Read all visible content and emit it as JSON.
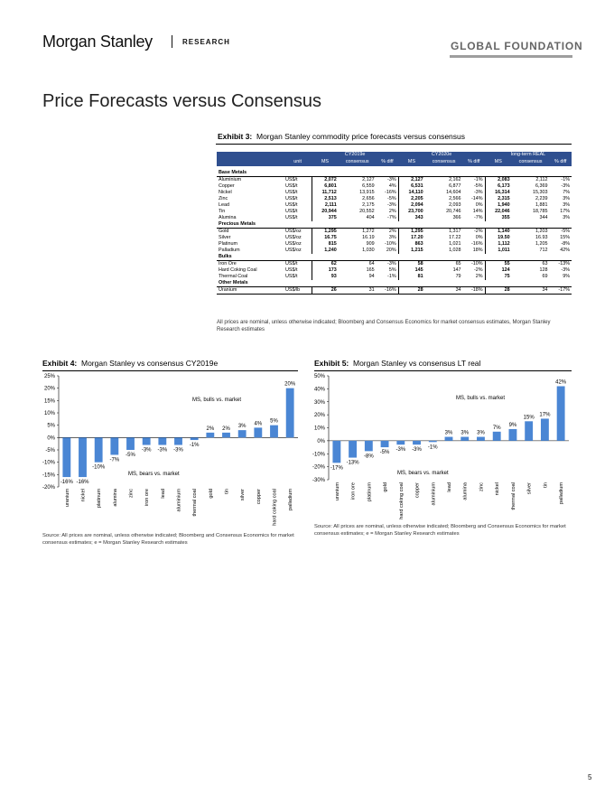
{
  "header": {
    "brand": "Morgan Stanley",
    "section": "RESEARCH",
    "series": "GLOBAL FOUNDATION"
  },
  "page_title": "Price Forecasts versus Consensus",
  "exhibit3": {
    "label": "Exhibit 3:",
    "title": "Morgan Stanley commodity price forecasts versus consensus",
    "groups": [
      "CY2019e",
      "CY2020e",
      "long-term REAL"
    ],
    "columns": [
      "unit",
      "MS",
      "consensus",
      "% diff",
      "MS",
      "consensus",
      "% diff",
      "MS",
      "consensus",
      "% diff"
    ],
    "sections": [
      {
        "name": "Base Metals",
        "rows": [
          [
            "Aluminium",
            "US$/t",
            "2,072",
            "2,127",
            "-3%",
            "2,127",
            "2,162",
            "-1%",
            "2,083",
            "2,112",
            "-1%"
          ],
          [
            "Copper",
            "US$/t",
            "6,801",
            "6,559",
            "4%",
            "6,531",
            "6,877",
            "-5%",
            "6,173",
            "6,369",
            "-3%"
          ],
          [
            "Nickel",
            "US$/t",
            "11,712",
            "13,915",
            "-16%",
            "14,110",
            "14,604",
            "-3%",
            "16,314",
            "15,303",
            "7%"
          ],
          [
            "Zinc",
            "US$/t",
            "2,513",
            "2,656",
            "-5%",
            "2,205",
            "2,566",
            "-14%",
            "2,315",
            "2,239",
            "3%"
          ],
          [
            "Lead",
            "US$/t",
            "2,111",
            "2,175",
            "-3%",
            "2,094",
            "2,093",
            "0%",
            "1,940",
            "1,881",
            "3%"
          ],
          [
            "Tin",
            "US$/t",
            "20,944",
            "20,552",
            "2%",
            "23,700",
            "20,746",
            "14%",
            "22,046",
            "18,785",
            "17%"
          ],
          [
            "Alumina",
            "US$/t",
            "375",
            "404",
            "-7%",
            "343",
            "366",
            "-7%",
            "355",
            "344",
            "3%"
          ]
        ]
      },
      {
        "name": "Precious Metals",
        "rows": [
          [
            "Gold",
            "US$/oz",
            "1,295",
            "1,272",
            "2%",
            "1,295",
            "1,317",
            "-2%",
            "1,140",
            "1,203",
            "-5%"
          ],
          [
            "Silver",
            "US$/oz",
            "16.75",
            "16.19",
            "3%",
            "17.20",
            "17.22",
            "0%",
            "19.50",
            "16.93",
            "15%"
          ],
          [
            "Platinum",
            "US$/oz",
            "815",
            "909",
            "-10%",
            "863",
            "1,021",
            "-16%",
            "1,112",
            "1,205",
            "-8%"
          ],
          [
            "Palladium",
            "US$/oz",
            "1,240",
            "1,030",
            "20%",
            "1,215",
            "1,028",
            "18%",
            "1,011",
            "712",
            "42%"
          ]
        ]
      },
      {
        "name": "Bulks",
        "rows": [
          [
            "Iron Ore",
            "US$/t",
            "62",
            "64",
            "-3%",
            "58",
            "65",
            "-10%",
            "55",
            "63",
            "-13%"
          ],
          [
            "Hard Coking Coal",
            "US$/t",
            "173",
            "165",
            "5%",
            "145",
            "147",
            "-2%",
            "124",
            "128",
            "-3%"
          ],
          [
            "Thermal Coal",
            "US$/t",
            "93",
            "94",
            "-1%",
            "81",
            "79",
            "2%",
            "75",
            "69",
            "9%"
          ]
        ]
      },
      {
        "name": "Other Metals",
        "rows": [
          [
            "Uranium",
            "US$/lb",
            "26",
            "31",
            "-16%",
            "28",
            "34",
            "-18%",
            "28",
            "34",
            "-17%"
          ]
        ]
      }
    ],
    "note": "All prices are nominal, unless otherwise indicated; Bloomberg and Consensus Economics for market consensus estimates, Morgan Stanley Research estimates"
  },
  "exhibit4": {
    "label": "Exhibit 4:",
    "title": "Morgan Stanley vs consensus CY2019e",
    "source": "Source: All prices are nominal, unless otherwise indicated; Bloomberg and Consensus Economics for market consensus estimates; e = Morgan Stanley Research estimates"
  },
  "exhibit5": {
    "label": "Exhibit 5:",
    "title": "Morgan Stanley vs consensus LT real",
    "source": "Source: All prices are nominal, unless otherwise indicated; Bloomberg and Consensus Economics for market consensus estimates; e = Morgan Stanley Research estimates"
  },
  "chart_data": [
    {
      "type": "bar",
      "title": "Morgan Stanley vs consensus CY2019e",
      "categories": [
        "uranium",
        "nickel",
        "platinum",
        "alumina",
        "zinc",
        "iron ore",
        "lead",
        "aluminium",
        "thermal coal",
        "gold",
        "tin",
        "silver",
        "copper",
        "hard coking coal",
        "palladium"
      ],
      "values": [
        -16,
        -16,
        -10,
        -7,
        -5,
        -3,
        -3,
        -3,
        -1,
        2,
        2,
        3,
        4,
        5,
        20
      ],
      "data_labels": [
        "-16%",
        "-16%",
        "-10%",
        "-7%",
        "-5%",
        "-3%",
        "-3%",
        "-3%",
        "-1%",
        "2%",
        "2%",
        "3%",
        "4%",
        "5%",
        "20%"
      ],
      "ylim": [
        -20,
        25
      ],
      "yticks": [
        "25%",
        "20%",
        "15%",
        "10%",
        "5%",
        "0%",
        "-5%",
        "-10%",
        "-15%",
        "-20%"
      ],
      "annotations": [
        "MS, bulls vs. market",
        "MS, bears vs. market"
      ],
      "color": "#4a86d4"
    },
    {
      "type": "bar",
      "title": "Morgan Stanley vs consensus LT real",
      "categories": [
        "uranium",
        "iron ore",
        "platinum",
        "gold",
        "hard coking coal",
        "copper",
        "aluminium",
        "lead",
        "alumina",
        "zinc",
        "nickel",
        "thermal coal",
        "silver",
        "tin",
        "palladium"
      ],
      "values": [
        -17,
        -13,
        -8,
        -5,
        -3,
        -3,
        -1,
        3,
        3,
        3,
        7,
        9,
        15,
        17,
        42
      ],
      "data_labels": [
        "-17%",
        "-13%",
        "-8%",
        "-5%",
        "-3%",
        "-3%",
        "-1%",
        "3%",
        "3%",
        "3%",
        "7%",
        "9%",
        "15%",
        "17%",
        "42%"
      ],
      "ylim": [
        -30,
        50
      ],
      "yticks": [
        "50%",
        "40%",
        "30%",
        "20%",
        "10%",
        "0%",
        "-10%",
        "-20%",
        "-30%"
      ],
      "annotations": [
        "MS, bulls vs. market",
        "MS, bears vs. market"
      ],
      "color": "#4a86d4"
    }
  ],
  "page_number": "5"
}
